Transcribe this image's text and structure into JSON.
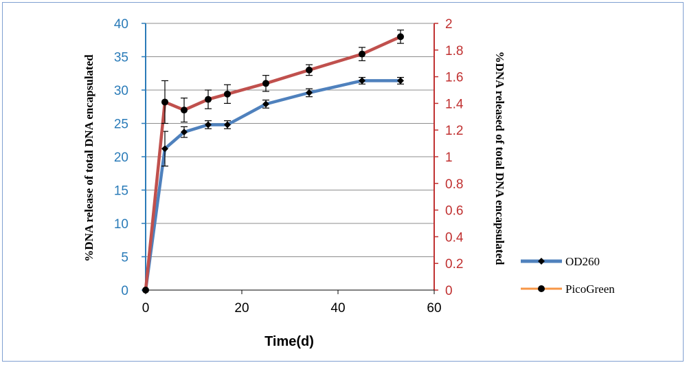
{
  "chart_data": {
    "type": "line",
    "xlabel": "Time(d)",
    "ylabel_left": "%DNA release of total DNA encapsulated",
    "ylabel_right": "%DNA released of total DNA encapsulated",
    "xlim": [
      0,
      60
    ],
    "x_ticks": [
      "0",
      "20",
      "40",
      "60"
    ],
    "ylim_left": [
      0,
      40
    ],
    "y_ticks_left": [
      "0",
      "5",
      "10",
      "15",
      "20",
      "25",
      "30",
      "35",
      "40"
    ],
    "ylim_right": [
      0,
      2
    ],
    "y_ticks_right": [
      "0",
      "0.2",
      "0.4",
      "0.6",
      "0.8",
      "1",
      "1.2",
      "1.4",
      "1.6",
      "1.8",
      "2"
    ],
    "grid": "horizontal",
    "legend_position": "right",
    "series": [
      {
        "name": "OD260",
        "axis": "left",
        "color": "#4f81bd",
        "x": [
          0,
          4,
          8,
          13,
          17,
          25,
          34,
          45,
          53
        ],
        "y": [
          0,
          21.2,
          23.7,
          24.8,
          24.8,
          27.9,
          29.6,
          31.4,
          31.4
        ],
        "err": [
          0,
          2.6,
          0.8,
          0.6,
          0.6,
          0.6,
          0.6,
          0.5,
          0.5
        ]
      },
      {
        "name": "PicoGreen",
        "axis": "right",
        "color": "#c0504d",
        "x": [
          0,
          4,
          8,
          13,
          17,
          25,
          34,
          45,
          53
        ],
        "y": [
          0,
          1.41,
          1.35,
          1.43,
          1.47,
          1.55,
          1.65,
          1.77,
          1.9
        ],
        "err": [
          0,
          0.16,
          0.09,
          0.07,
          0.07,
          0.06,
          0.04,
          0.05,
          0.05
        ]
      }
    ]
  }
}
